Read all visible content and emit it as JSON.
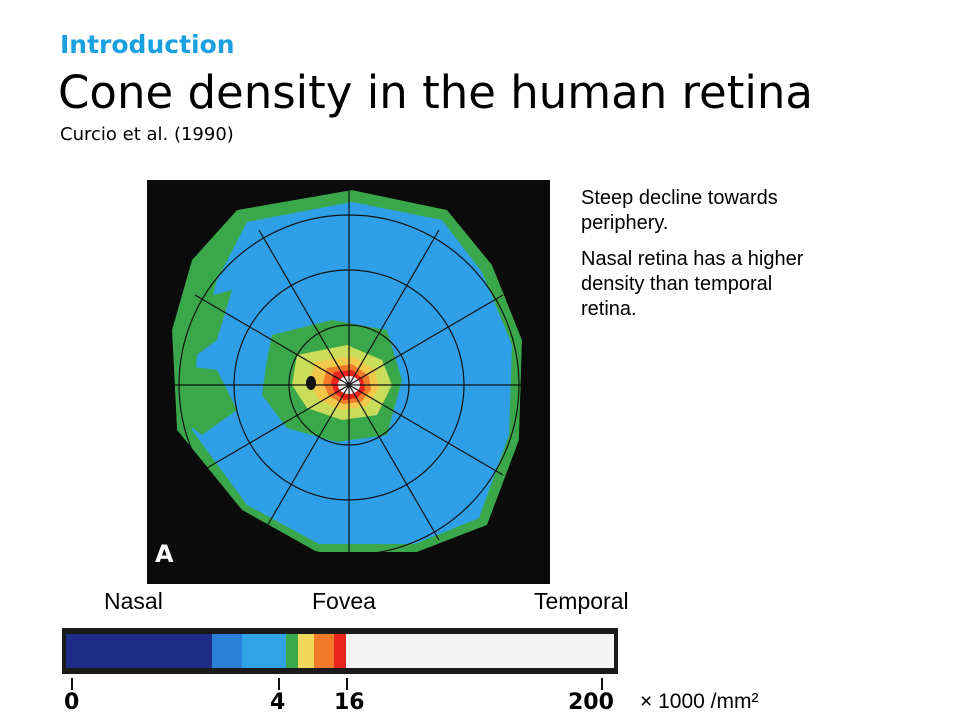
{
  "header": {
    "kicker": "Introduction",
    "title": "Cone density in the human retina",
    "citation": "Curcio et al. (1990)"
  },
  "figure": {
    "panel_letter": "A"
  },
  "notes": [
    "Steep decline towards periphery.",
    "Nasal retina has a higher density than temporal retina."
  ],
  "axis_labels": {
    "left": "Nasal",
    "center": "Fovea",
    "right": "Temporal"
  },
  "colorbar": {
    "tick_labels": [
      "0",
      "4",
      "16",
      "200"
    ],
    "unit": "× 1000 /mm²",
    "colors": [
      "#1e2e86",
      "#2a7fd8",
      "#2fa3e6",
      "#3aa84a",
      "#f0d85a",
      "#f07a2a",
      "#e8241c",
      "#f4f4f4"
    ]
  }
}
